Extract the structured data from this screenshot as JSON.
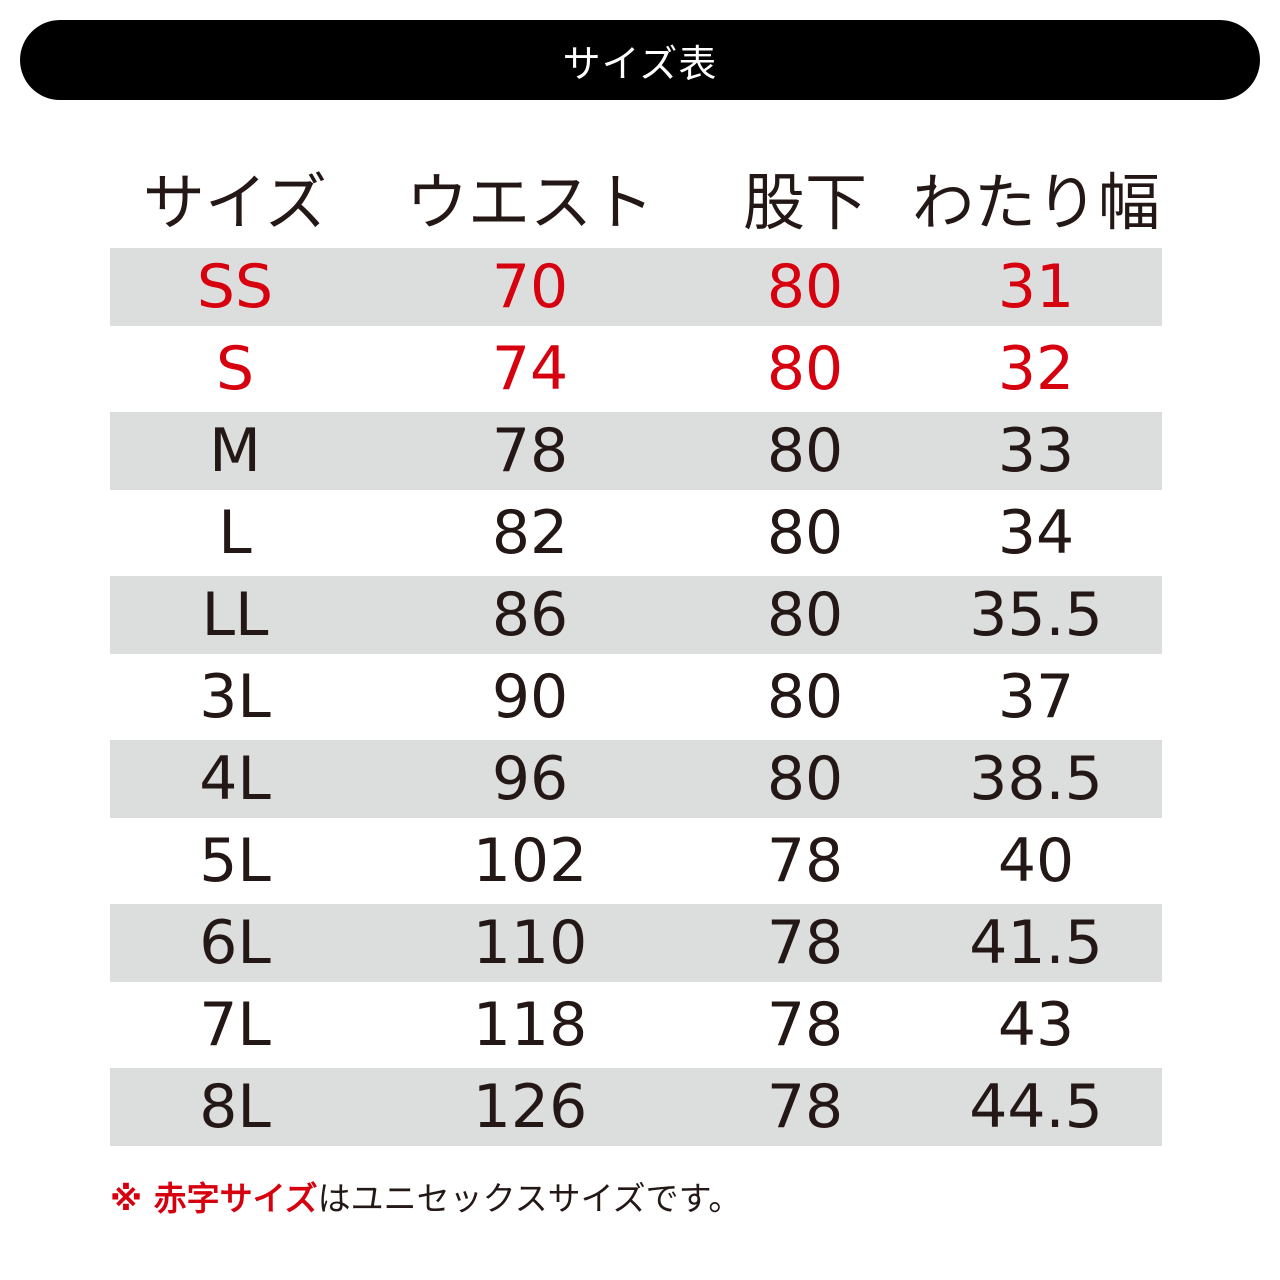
{
  "title": "サイズ表",
  "headers": [
    "サイズ",
    "ウエスト",
    "股下",
    "わたり幅"
  ],
  "rows": [
    {
      "size": "SS",
      "waist": "70",
      "inseam": "80",
      "thigh": "31",
      "highlight": true
    },
    {
      "size": "S",
      "waist": "74",
      "inseam": "80",
      "thigh": "32",
      "highlight": true
    },
    {
      "size": "M",
      "waist": "78",
      "inseam": "80",
      "thigh": "33",
      "highlight": false
    },
    {
      "size": "L",
      "waist": "82",
      "inseam": "80",
      "thigh": "34",
      "highlight": false
    },
    {
      "size": "LL",
      "waist": "86",
      "inseam": "80",
      "thigh": "35.5",
      "highlight": false
    },
    {
      "size": "3L",
      "waist": "90",
      "inseam": "80",
      "thigh": "37",
      "highlight": false
    },
    {
      "size": "4L",
      "waist": "96",
      "inseam": "80",
      "thigh": "38.5",
      "highlight": false
    },
    {
      "size": "5L",
      "waist": "102",
      "inseam": "78",
      "thigh": "40",
      "highlight": false
    },
    {
      "size": "6L",
      "waist": "110",
      "inseam": "78",
      "thigh": "41.5",
      "highlight": false
    },
    {
      "size": "7L",
      "waist": "118",
      "inseam": "78",
      "thigh": "43",
      "highlight": false
    },
    {
      "size": "8L",
      "waist": "126",
      "inseam": "78",
      "thigh": "44.5",
      "highlight": false
    }
  ],
  "note": {
    "emphasis": "※ 赤字サイズ",
    "rest": "はユニセックスサイズです。"
  },
  "colors": {
    "accent_red": "#d7000f",
    "row_shade": "#dcdddd",
    "text": "#231815",
    "title_bg": "#000000"
  }
}
